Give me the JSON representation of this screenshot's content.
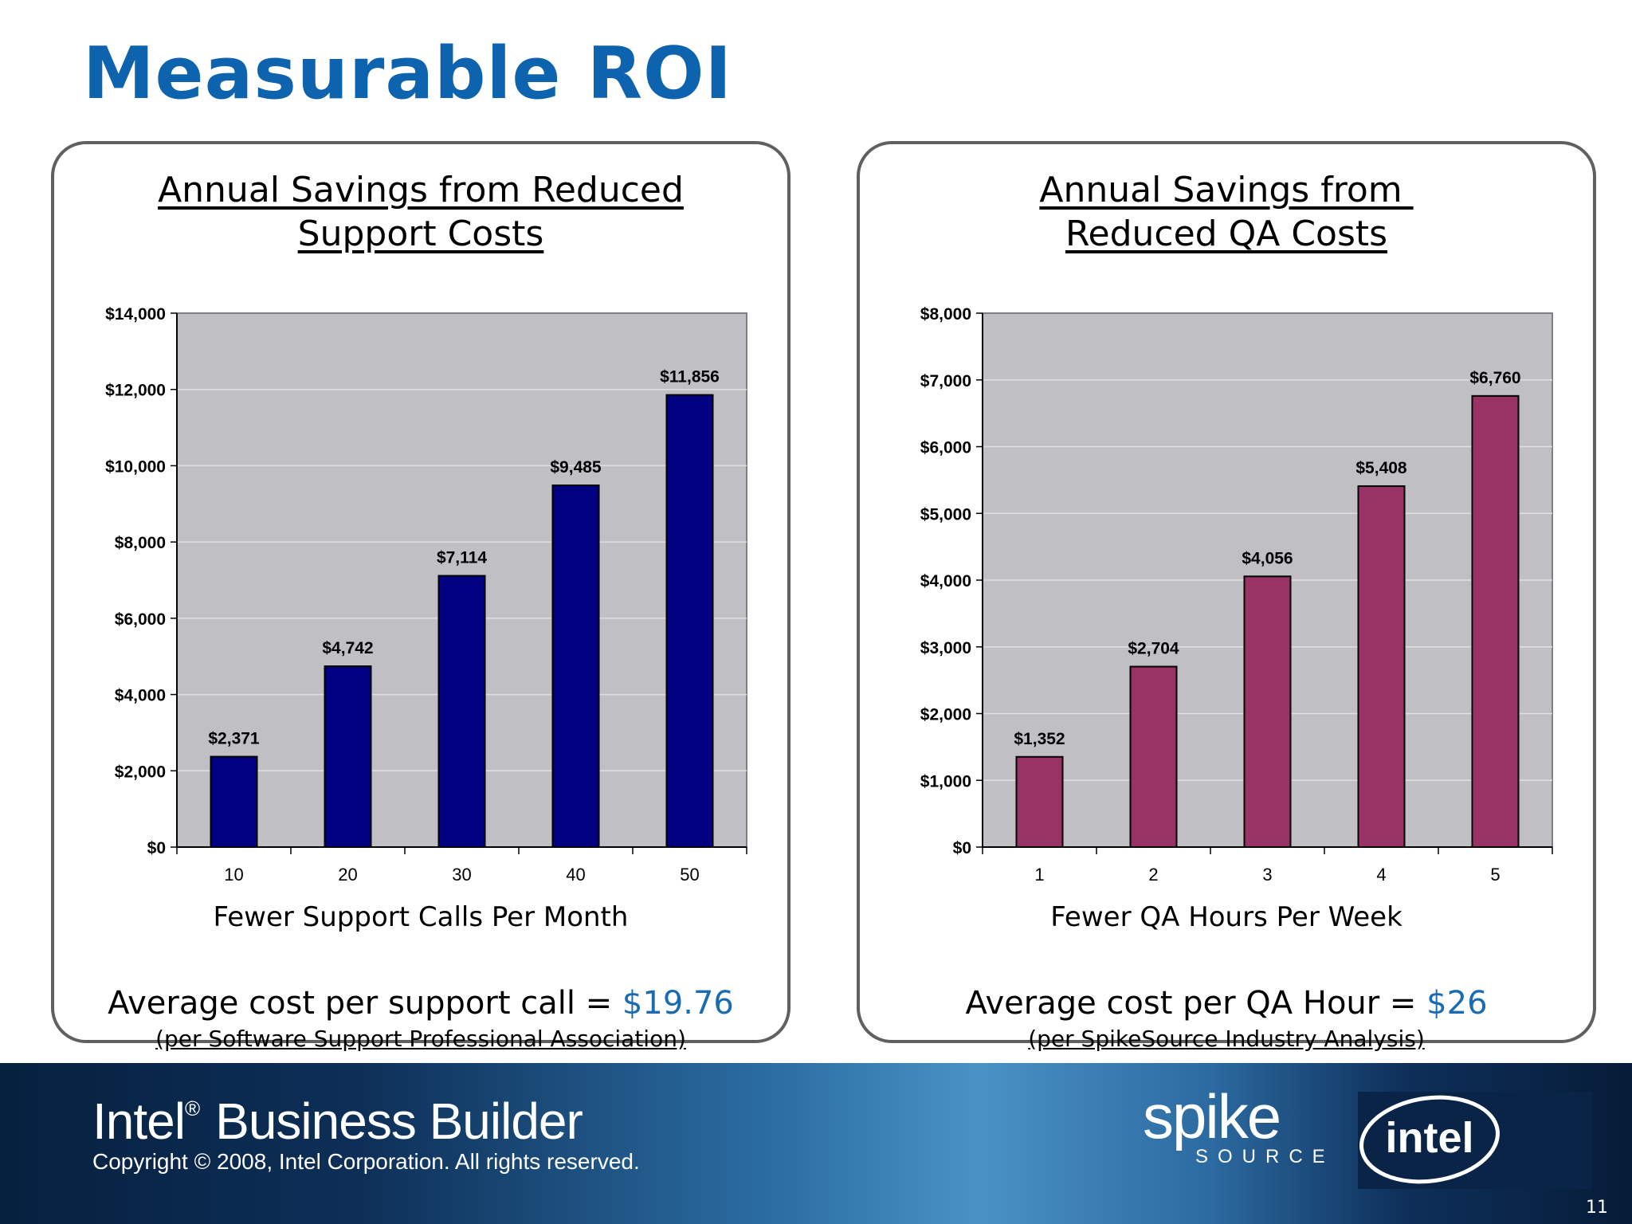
{
  "slide": {
    "title": "Measurable ROI",
    "page_number": "11"
  },
  "left_panel": {
    "title_line1": "Annual Savings from Reduced",
    "title_line2": "Support Costs",
    "avg_text": "Average cost per support call = ",
    "avg_value": "$19.76",
    "source": "(per  Software Support Professional Association)"
  },
  "right_panel": {
    "title_line1": "Annual Savings from ",
    "title_line2": "Reduced QA Costs",
    "avg_text": "Average cost per QA Hour = ",
    "avg_value": "$26",
    "source": "(per SpikeSource Industry Analysis)"
  },
  "footer": {
    "brand": "Intel",
    "brand_mark": "®",
    "brand_rest": "Business Builder",
    "copyright": "Copyright © 2008, Intel Corporation. All rights reserved.",
    "spike_word": "spike",
    "spike_sub": "SOURCE",
    "intel_logo": "intel"
  },
  "chart_data": [
    {
      "type": "bar",
      "categories": [
        "10",
        "20",
        "30",
        "40",
        "50"
      ],
      "values": [
        2371,
        4742,
        7114,
        9485,
        11856
      ],
      "data_labels": [
        "$2,371",
        "$4,742",
        "$7,114",
        "$9,485",
        "$11,856"
      ],
      "xlabel": "Fewer Support Calls Per Month",
      "ylabel": "",
      "ylim": [
        0,
        14000
      ],
      "yticks": [
        0,
        2000,
        4000,
        6000,
        8000,
        10000,
        12000,
        14000
      ],
      "ytick_labels": [
        "$0",
        "$2,000",
        "$4,000",
        "$6,000",
        "$8,000",
        "$10,000",
        "$12,000",
        "$14,000"
      ],
      "grid": true,
      "bar_color": "#000080",
      "plot_bg": "#c0bfc4"
    },
    {
      "type": "bar",
      "categories": [
        "1",
        "2",
        "3",
        "4",
        "5"
      ],
      "values": [
        1352,
        2704,
        4056,
        5408,
        6760
      ],
      "data_labels": [
        "$1,352",
        "$2,704",
        "$4,056",
        "$5,408",
        "$6,760"
      ],
      "xlabel": "Fewer QA Hours Per Week",
      "ylabel": "",
      "ylim": [
        0,
        8000
      ],
      "yticks": [
        0,
        1000,
        2000,
        3000,
        4000,
        5000,
        6000,
        7000,
        8000
      ],
      "ytick_labels": [
        "$0",
        "$1,000",
        "$2,000",
        "$3,000",
        "$4,000",
        "$5,000",
        "$6,000",
        "$7,000",
        "$8,000"
      ],
      "grid": true,
      "bar_color": "#993366",
      "plot_bg": "#c0bfc4"
    }
  ]
}
